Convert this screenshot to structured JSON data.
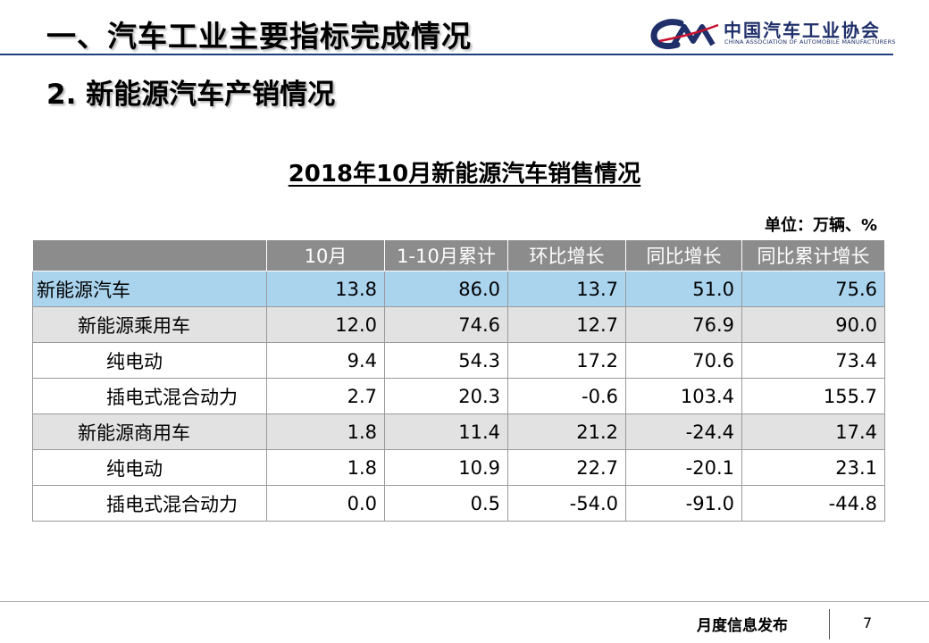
{
  "header": {
    "title": "一、汽车工业主要指标完成情况",
    "logo_cn": "中国汽车工业协会",
    "logo_en": "CHINA ASSOCIATION OF AUTOMOBILE MANUFACTURERS",
    "logo_mark": "CAAM",
    "accent_color": "#1f3f80"
  },
  "section": {
    "title": "2. 新能源汽车产销情况"
  },
  "table": {
    "title": "2018年10月新能源汽车销售情况",
    "unit": "单位：万辆、%",
    "columns": [
      "",
      "10月",
      "1-10月累计",
      "环比增长",
      "同比增长",
      "同比累计增长"
    ],
    "rows": [
      {
        "label": "新能源汽车",
        "values": [
          "13.8",
          "86.0",
          "13.7",
          "51.0",
          "75.6"
        ]
      },
      {
        "label": "新能源乘用车",
        "values": [
          "12.0",
          "74.6",
          "12.7",
          "76.9",
          "90.0"
        ]
      },
      {
        "label": "纯电动",
        "values": [
          "9.4",
          "54.3",
          "17.2",
          "70.6",
          "73.4"
        ]
      },
      {
        "label": "插电式混合动力",
        "values": [
          "2.7",
          "20.3",
          "-0.6",
          "103.4",
          "155.7"
        ]
      },
      {
        "label": "新能源商用车",
        "values": [
          "1.8",
          "11.4",
          "21.2",
          "-24.4",
          "17.4"
        ]
      },
      {
        "label": "纯电动",
        "values": [
          "1.8",
          "10.9",
          "22.7",
          "-20.1",
          "23.1"
        ]
      },
      {
        "label": "插电式混合动力",
        "values": [
          "0.0",
          "0.5",
          "-54.0",
          "-91.0",
          "-44.8"
        ]
      }
    ]
  },
  "footer": {
    "text": "月度信息发布",
    "page_number": "7"
  }
}
